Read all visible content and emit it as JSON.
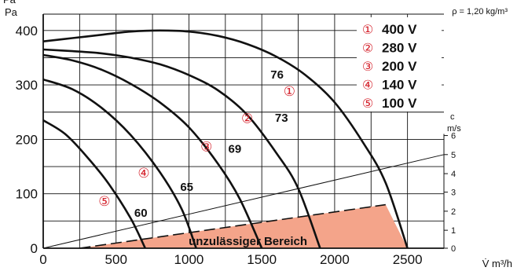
{
  "chart_data": {
    "type": "line",
    "y_unit_top": "Pa",
    "y_unit": "Pa",
    "x_unit": "V̇ m³/h",
    "density_note": "ρ = 1,20 kg/m³",
    "right_axis_label_top": "c",
    "right_axis_label_unit": "m/s",
    "xlim": [
      0,
      2750
    ],
    "ylim": [
      0,
      430
    ],
    "x_ticks": [
      "0",
      "500",
      "1000",
      "1500",
      "2000",
      "2500"
    ],
    "y_ticks": [
      "0",
      "100",
      "200",
      "300",
      "400"
    ],
    "right_ticks": [
      {
        "value": 0,
        "label": "0"
      },
      {
        "value": 1,
        "label": "1"
      },
      {
        "value": 2,
        "label": "2"
      },
      {
        "value": 3,
        "label": "3"
      },
      {
        "value": 4,
        "label": "4"
      },
      {
        "value": 5,
        "label": "5"
      },
      {
        "value": 6,
        "label": "6"
      }
    ],
    "right_tick_y_pa": [
      0,
      33,
      68,
      103,
      137,
      172,
      207
    ],
    "grid": true,
    "legend": [
      {
        "num": "①",
        "label": "400 V"
      },
      {
        "num": "②",
        "label": "280 V"
      },
      {
        "num": "③",
        "label": "200 V"
      },
      {
        "num": "④",
        "label": "140 V"
      },
      {
        "num": "⑤",
        "label": "100 V"
      }
    ],
    "legend_position": "top-right",
    "series": [
      {
        "num": "①",
        "db": "76",
        "label_at": [
          1690,
          280
        ],
        "db_at": [
          1560,
          312
        ],
        "x": [
          0,
          200,
          400,
          600,
          800,
          1000,
          1200,
          1400,
          1600,
          1800,
          2000,
          2200,
          2350,
          2500
        ],
        "y": [
          380,
          386,
          392,
          398,
          400,
          398,
          390,
          375,
          352,
          318,
          268,
          192,
          120,
          0
        ]
      },
      {
        "num": "②",
        "db": "73",
        "label_at": [
          1400,
          230
        ],
        "db_at": [
          1590,
          232
        ],
        "x": [
          0,
          200,
          400,
          600,
          800,
          1000,
          1200,
          1400,
          1600,
          1750,
          1900
        ],
        "y": [
          365,
          362,
          358,
          350,
          338,
          318,
          290,
          245,
          175,
          110,
          0
        ]
      },
      {
        "num": "③",
        "db": "69",
        "label_at": [
          1120,
          178
        ],
        "db_at": [
          1270,
          175
        ],
        "x": [
          0,
          200,
          400,
          600,
          800,
          1000,
          1200,
          1350,
          1500
        ],
        "y": [
          355,
          345,
          328,
          302,
          268,
          222,
          155,
          90,
          0
        ]
      },
      {
        "num": "④",
        "db": "65",
        "label_at": [
          690,
          130
        ],
        "db_at": [
          940,
          105
        ],
        "x": [
          0,
          200,
          400,
          600,
          800,
          950,
          1050
        ],
        "y": [
          310,
          292,
          258,
          208,
          140,
          72,
          0
        ]
      },
      {
        "num": "⑤",
        "db": "60",
        "label_at": [
          420,
          78
        ],
        "db_at": [
          625,
          58
        ],
        "x": [
          0,
          150,
          300,
          450,
          600,
          700
        ],
        "y": [
          235,
          210,
          168,
          118,
          55,
          0
        ]
      }
    ],
    "forbidden_region": {
      "label": "unzulässiger Bereich",
      "polygon_x": [
        250,
        2350,
        2500
      ],
      "polygon_y": [
        0,
        80,
        0
      ]
    },
    "velocity_line": {
      "x": [
        0,
        2750
      ],
      "y": [
        0,
        172
      ]
    }
  }
}
